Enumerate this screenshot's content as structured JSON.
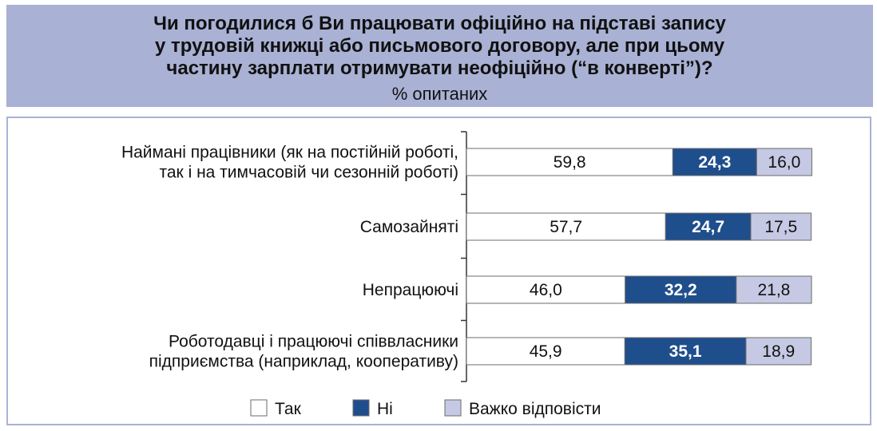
{
  "chart_data": {
    "type": "bar",
    "orientation": "horizontal",
    "stacked": true,
    "title_lines": [
      "Чи погодилися б Ви працювати офіційно на підставі запису",
      "у трудовій книжці або письмового договору, але при цьому",
      "частину зарплати отримувати неофіційно (“в конверті”)?"
    ],
    "subtitle": "% опитаних",
    "categories": [
      [
        "Наймані працівники (як на постійній роботі,",
        "так і на тимчасовій чи сезонній роботі)"
      ],
      [
        "Самозайняті"
      ],
      [
        "Непрацюючі"
      ],
      [
        "Роботодавці і працюючі співвласники",
        "підприємства (наприклад, кооперативу)"
      ]
    ],
    "series": [
      {
        "name": "Так",
        "color": "#ffffff",
        "text_color": "#111111",
        "values": [
          59.8,
          57.7,
          46.0,
          45.9
        ]
      },
      {
        "name": "Ні",
        "color": "#1f4e8c",
        "text_color": "#ffffff",
        "values": [
          24.3,
          24.7,
          32.2,
          35.1
        ]
      },
      {
        "name": "Важко відповісти",
        "color": "#c5c9e3",
        "text_color": "#111111",
        "values": [
          16.0,
          17.5,
          21.8,
          18.9
        ]
      }
    ],
    "value_labels": [
      [
        "59,8",
        "24,3",
        "16,0"
      ],
      [
        "57,7",
        "24,7",
        "17,5"
      ],
      [
        "46,0",
        "32,2",
        "21,8"
      ],
      [
        "45,9",
        "35,1",
        "18,9"
      ]
    ],
    "xlim": [
      0,
      100
    ],
    "legend_position": "bottom",
    "grid": false
  }
}
